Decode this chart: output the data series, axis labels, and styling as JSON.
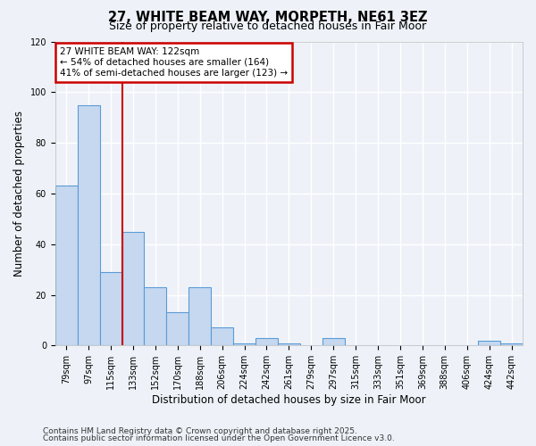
{
  "title": "27, WHITE BEAM WAY, MORPETH, NE61 3EZ",
  "subtitle": "Size of property relative to detached houses in Fair Moor",
  "xlabel": "Distribution of detached houses by size in Fair Moor",
  "ylabel": "Number of detached properties",
  "footer1": "Contains HM Land Registry data © Crown copyright and database right 2025.",
  "footer2": "Contains public sector information licensed under the Open Government Licence v3.0.",
  "bins": [
    "79sqm",
    "97sqm",
    "115sqm",
    "133sqm",
    "152sqm",
    "170sqm",
    "188sqm",
    "206sqm",
    "224sqm",
    "242sqm",
    "261sqm",
    "279sqm",
    "297sqm",
    "315sqm",
    "333sqm",
    "351sqm",
    "369sqm",
    "388sqm",
    "406sqm",
    "424sqm",
    "442sqm"
  ],
  "values": [
    63,
    95,
    29,
    45,
    23,
    13,
    23,
    7,
    1,
    3,
    1,
    0,
    3,
    0,
    0,
    0,
    0,
    0,
    0,
    2,
    1
  ],
  "bar_color": "#c5d8f0",
  "bar_edge_color": "#5b9bd5",
  "red_line_x": 2.5,
  "annotation_line1": "27 WHITE BEAM WAY: 122sqm",
  "annotation_line2": "← 54% of detached houses are smaller (164)",
  "annotation_line3": "41% of semi-detached houses are larger (123) →",
  "annotation_box_color": "#ffffff",
  "annotation_box_edge": "#cc0000",
  "ylim": [
    0,
    120
  ],
  "background_color": "#eef2f8",
  "grid_color": "#ffffff",
  "title_fontsize": 10.5,
  "subtitle_fontsize": 9,
  "tick_fontsize": 7,
  "ylabel_fontsize": 8.5,
  "xlabel_fontsize": 8.5,
  "annotation_fontsize": 7.5,
  "footer_fontsize": 6.5
}
